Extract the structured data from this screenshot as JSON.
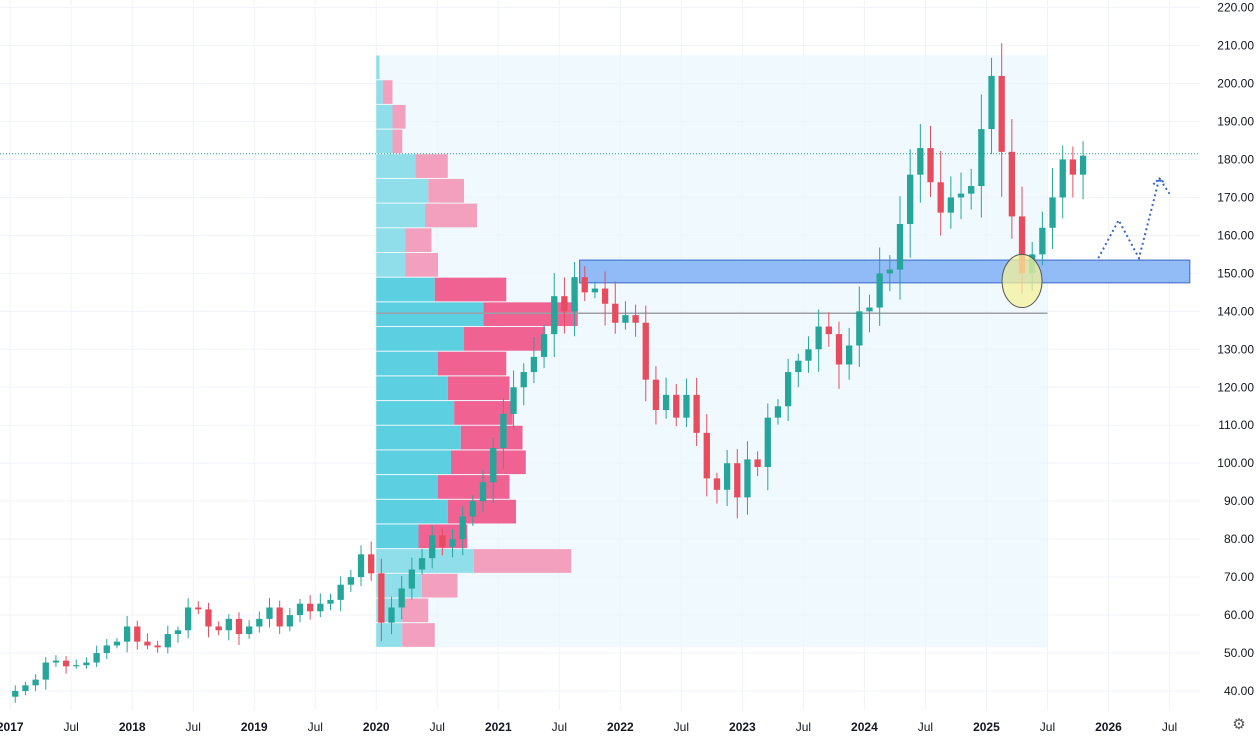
{
  "chart_data": {
    "type": "candlestick",
    "colors": {
      "up": "#26a69a",
      "up_dark": "#1e9a74",
      "down": "#e74c5e",
      "vp_up": "#5ccfe0",
      "vp_down": "#f06292",
      "vp_up_light": "#8fdeea",
      "vp_down_light": "#f2a0bd",
      "vp_bg": "#eaf7fc",
      "zone": "#7fb0f5",
      "zone_border": "#3a66c9",
      "poc_line": "#9aa0a6",
      "last_price_line": "#26a69a",
      "circle_fill": "#f4f19a",
      "circle_border": "#555555",
      "arrow": "#3a66c9",
      "grid": "#f0f3fa"
    },
    "y_axis": {
      "min": 35,
      "max": 222,
      "ticks": [
        "220.00",
        "210.00",
        "200.00",
        "190.00",
        "180.00",
        "170.00",
        "160.00",
        "150.00",
        "140.00",
        "130.00",
        "120.00",
        "110.00",
        "100.00",
        "90.00",
        "80.00",
        "70.00",
        "60.00",
        "50.00",
        "40.00"
      ]
    },
    "x_axis": {
      "range": [
        "2016-12",
        "2026-10"
      ],
      "ticks": [
        {
          "date": "2017-01",
          "label": "2017",
          "bold": true
        },
        {
          "date": "2017-07",
          "label": "Jul",
          "bold": false
        },
        {
          "date": "2018-01",
          "label": "2018",
          "bold": true
        },
        {
          "date": "2018-07",
          "label": "Jul",
          "bold": false
        },
        {
          "date": "2019-01",
          "label": "2019",
          "bold": true
        },
        {
          "date": "2019-07",
          "label": "Jul",
          "bold": false
        },
        {
          "date": "2020-01",
          "label": "2020",
          "bold": true
        },
        {
          "date": "2020-07",
          "label": "Jul",
          "bold": false
        },
        {
          "date": "2021-01",
          "label": "2021",
          "bold": true
        },
        {
          "date": "2021-07",
          "label": "Jul",
          "bold": false
        },
        {
          "date": "2022-01",
          "label": "2022",
          "bold": true
        },
        {
          "date": "2022-07",
          "label": "Jul",
          "bold": false
        },
        {
          "date": "2023-01",
          "label": "2023",
          "bold": true
        },
        {
          "date": "2023-07",
          "label": "Jul",
          "bold": false
        },
        {
          "date": "2024-01",
          "label": "2024",
          "bold": true
        },
        {
          "date": "2024-07",
          "label": "Jul",
          "bold": false
        },
        {
          "date": "2025-01",
          "label": "2025",
          "bold": true
        },
        {
          "date": "2025-07",
          "label": "Jul",
          "bold": false
        },
        {
          "date": "2026-01",
          "label": "2026",
          "bold": true
        },
        {
          "date": "2026-07",
          "label": "Jul",
          "bold": false
        }
      ]
    },
    "closes": [
      38.5,
      40,
      41.5,
      43,
      47.5,
      48,
      46.5,
      46.8,
      47.5,
      50,
      52,
      53,
      57,
      53,
      52,
      51.5,
      55,
      56,
      62,
      61.5,
      57,
      56,
      59,
      55,
      57,
      59,
      62,
      57,
      60,
      63,
      61,
      63,
      64,
      68,
      70,
      76,
      71,
      58,
      62,
      67,
      72,
      75,
      81,
      78,
      80,
      86,
      90,
      95,
      104,
      113,
      120,
      124,
      128,
      134,
      144,
      140,
      149,
      145,
      146,
      142,
      137,
      139,
      137,
      122,
      114,
      118,
      112,
      118,
      108,
      96,
      93,
      100,
      91,
      101,
      99,
      112,
      115,
      124,
      127,
      130,
      136,
      134,
      126,
      131,
      140,
      141,
      150,
      151,
      163,
      176,
      183,
      174,
      166,
      170,
      171,
      173,
      188,
      202,
      182,
      165,
      150,
      155,
      162,
      170,
      180,
      176,
      181
    ],
    "vp_range": [
      "2020-01",
      "2025-07"
    ],
    "volume_profile": [
      {
        "low": 51.5,
        "high": 58,
        "up": 4,
        "down": 5
      },
      {
        "low": 58,
        "high": 64.5,
        "up": 4,
        "down": 4
      },
      {
        "low": 64.5,
        "high": 71,
        "up": 7,
        "down": 5.5
      },
      {
        "low": 71,
        "high": 77.5,
        "up": 15,
        "down": 15
      },
      {
        "low": 77.5,
        "high": 84,
        "up": 6.5,
        "down": 7.5
      },
      {
        "low": 84,
        "high": 90.5,
        "up": 11,
        "down": 10.5
      },
      {
        "low": 90.5,
        "high": 97,
        "up": 9.5,
        "down": 11
      },
      {
        "low": 97,
        "high": 103.5,
        "up": 11.5,
        "down": 11.5
      },
      {
        "low": 103.5,
        "high": 110,
        "up": 13,
        "down": 9.5
      },
      {
        "low": 110,
        "high": 116.5,
        "up": 12,
        "down": 9
      },
      {
        "low": 116.5,
        "high": 123,
        "up": 11,
        "down": 9.5
      },
      {
        "low": 123,
        "high": 129.5,
        "up": 9.5,
        "down": 10.5
      },
      {
        "low": 129.5,
        "high": 136,
        "up": 13.5,
        "down": 12.5
      },
      {
        "low": 136,
        "high": 142.5,
        "up": 16.5,
        "down": 14.5
      },
      {
        "low": 142.5,
        "high": 149,
        "up": 9,
        "down": 11
      },
      {
        "low": 149,
        "high": 155.5,
        "up": 4.5,
        "down": 5
      },
      {
        "low": 155.5,
        "high": 162,
        "up": 4.5,
        "down": 4
      },
      {
        "low": 162,
        "high": 168.5,
        "up": 7.5,
        "down": 8
      },
      {
        "low": 168.5,
        "high": 175,
        "up": 8,
        "down": 5.5
      },
      {
        "low": 175,
        "high": 181.5,
        "up": 6,
        "down": 5
      },
      {
        "low": 181.5,
        "high": 188,
        "up": 2.5,
        "down": 1.5
      },
      {
        "low": 188,
        "high": 194.5,
        "up": 2.5,
        "down": 2
      },
      {
        "low": 194.5,
        "high": 201,
        "up": 1,
        "down": 1.5
      },
      {
        "low": 201,
        "high": 207.5,
        "up": 0.5,
        "down": 0
      }
    ],
    "zone": {
      "start": "2021-09",
      "end": "2026-09",
      "low": 147.5,
      "high": 153.5
    },
    "poc_line": {
      "start": "2020-01",
      "end": "2025-07",
      "price": 139.5
    },
    "last_price": 181.5,
    "highlight": {
      "date": "2025-04",
      "price": 148,
      "price_radius": 7
    },
    "projection": [
      {
        "date": "2025-12",
        "price": 154
      },
      {
        "date": "2026-02",
        "price": 164
      },
      {
        "date": "2026-04",
        "price": 154
      },
      {
        "date": "2026-06",
        "price": 175
      },
      {
        "date": "2026-07",
        "price": 171
      }
    ],
    "grid": true
  }
}
